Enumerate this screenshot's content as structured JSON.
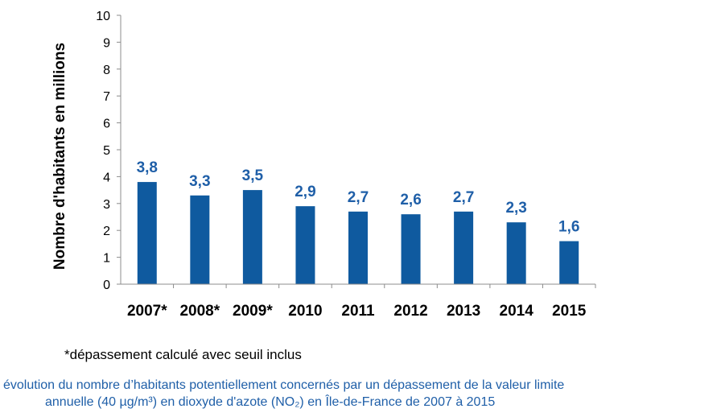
{
  "chart_data": {
    "type": "bar",
    "categories": [
      "2007*",
      "2008*",
      "2009*",
      "2010",
      "2011",
      "2012",
      "2013",
      "2014",
      "2015"
    ],
    "values": [
      3.8,
      3.3,
      3.5,
      2.9,
      2.7,
      2.6,
      2.7,
      2.3,
      1.6
    ],
    "data_labels": [
      "3,8",
      "3,3",
      "3,5",
      "2,9",
      "2,7",
      "2,6",
      "2,7",
      "2,3",
      "1,6"
    ],
    "ylabel": "Nombre d'habitants  en millions",
    "xlabel": "",
    "ylim": [
      0,
      10
    ],
    "yticks": [
      "0",
      "1",
      "2",
      "3",
      "4",
      "5",
      "6",
      "7",
      "8",
      "9",
      "10"
    ],
    "grid": false,
    "bar_color": "#0f5a9f",
    "label_color": "#1f5fa8"
  },
  "footnote": "*dépassement calculé avec seuil inclus",
  "caption": {
    "line1": "évolution du nombre d’habitants potentiellement concernés par un dépassement de la valeur limite",
    "line2": "annuelle (40 µg/m³) en dioxyde d'azote (NO₂) en Île-de-France de 2007 à 2015"
  }
}
